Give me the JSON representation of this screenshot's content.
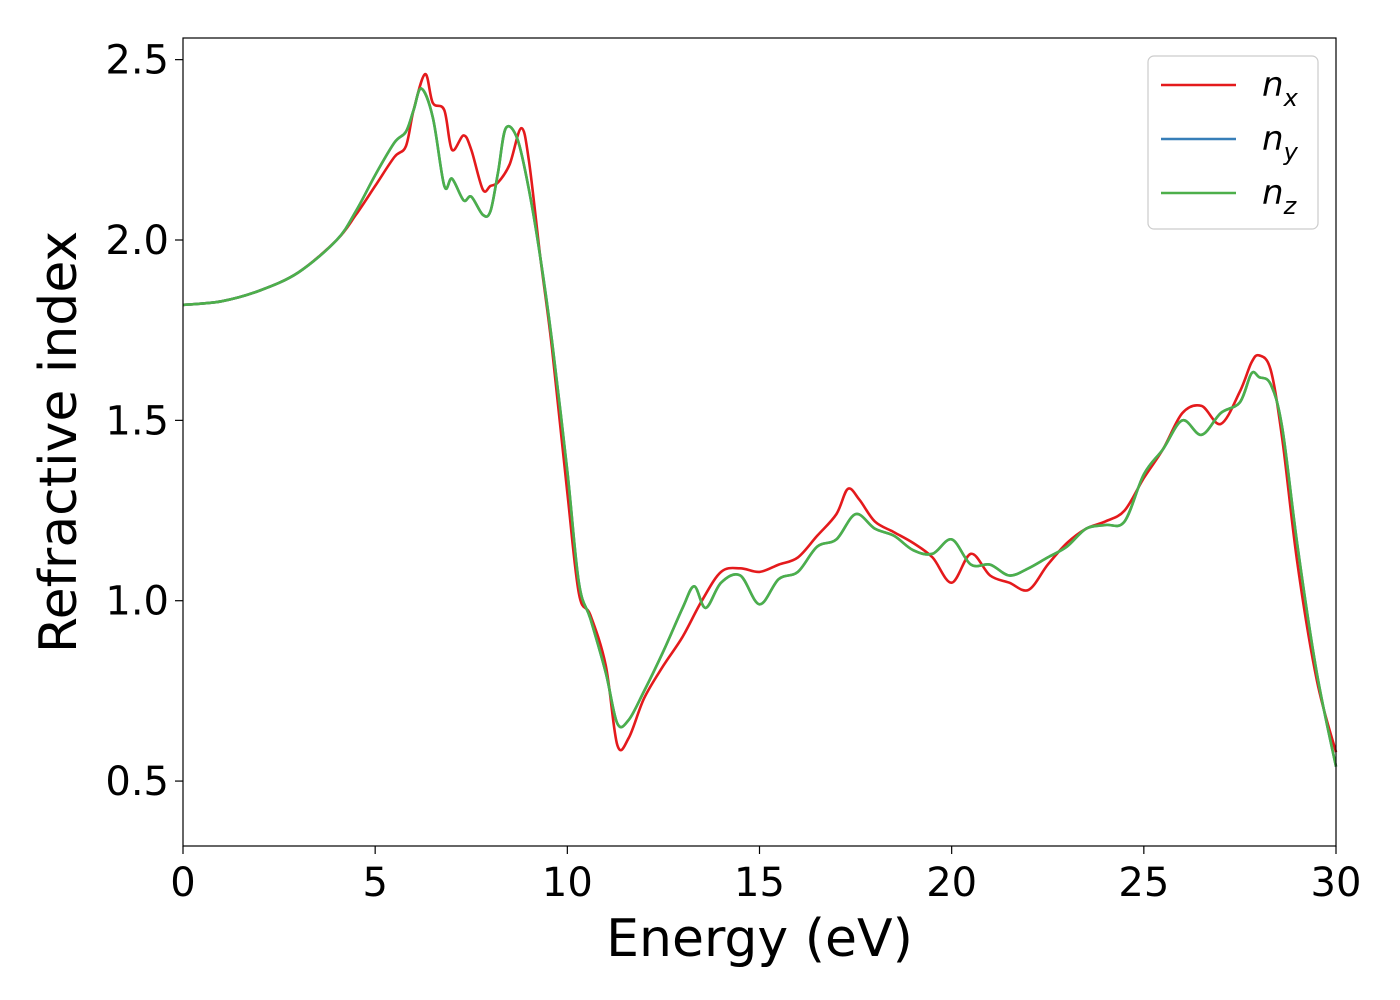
{
  "chart_data": {
    "type": "line",
    "title": "",
    "xlabel": "Energy (eV)",
    "ylabel": "Refractive index",
    "xlim": [
      0,
      30
    ],
    "ylim": [
      0.32,
      2.56
    ],
    "xticks": [
      0,
      5,
      10,
      15,
      20,
      25,
      30
    ],
    "xtick_labels": [
      "0",
      "5",
      "10",
      "15",
      "20",
      "25",
      "30"
    ],
    "yticks": [
      0.5,
      1.0,
      1.5,
      2.0,
      2.5
    ],
    "ytick_labels": [
      "0.5",
      "1.0",
      "1.5",
      "2.0",
      "2.5"
    ],
    "grid": false,
    "legend_position": "top-right",
    "series": [
      {
        "name": "n_x",
        "label_main": "n",
        "label_sub": "x",
        "color": "#e41a1c",
        "x": [
          0,
          1,
          2,
          3,
          4,
          4.5,
          5,
          5.5,
          5.8,
          6.0,
          6.3,
          6.5,
          6.8,
          7.0,
          7.3,
          7.5,
          7.8,
          8.0,
          8.2,
          8.5,
          8.8,
          9.0,
          9.3,
          9.6,
          10.0,
          10.3,
          10.6,
          11.0,
          11.3,
          11.6,
          12.0,
          12.5,
          13.0,
          13.5,
          14.0,
          14.5,
          15.0,
          15.5,
          16.0,
          16.5,
          17.0,
          17.3,
          17.6,
          18.0,
          18.5,
          19.0,
          19.5,
          20.0,
          20.5,
          21.0,
          21.5,
          22.0,
          22.5,
          23.0,
          23.5,
          24.0,
          24.5,
          25.0,
          25.5,
          26.0,
          26.5,
          27.0,
          27.5,
          27.8,
          28.0,
          28.3,
          28.6,
          29.0,
          29.5,
          30.0
        ],
        "y": [
          1.82,
          1.83,
          1.86,
          1.91,
          2.0,
          2.07,
          2.15,
          2.23,
          2.26,
          2.36,
          2.46,
          2.38,
          2.36,
          2.25,
          2.29,
          2.25,
          2.14,
          2.15,
          2.16,
          2.21,
          2.31,
          2.22,
          1.95,
          1.7,
          1.3,
          1.02,
          0.96,
          0.82,
          0.6,
          0.62,
          0.73,
          0.82,
          0.9,
          1.0,
          1.08,
          1.09,
          1.08,
          1.1,
          1.12,
          1.18,
          1.24,
          1.31,
          1.28,
          1.22,
          1.19,
          1.16,
          1.12,
          1.05,
          1.13,
          1.07,
          1.05,
          1.03,
          1.1,
          1.16,
          1.2,
          1.22,
          1.25,
          1.34,
          1.42,
          1.52,
          1.54,
          1.49,
          1.58,
          1.66,
          1.68,
          1.64,
          1.45,
          1.1,
          0.78,
          0.58
        ]
      },
      {
        "name": "n_y",
        "label_main": "n",
        "label_sub": "y",
        "color": "#377eb8",
        "x": [
          0,
          1,
          2,
          3,
          4,
          4.5,
          5,
          5.5,
          5.8,
          6.0,
          6.2,
          6.5,
          6.8,
          7.0,
          7.3,
          7.5,
          7.8,
          8.0,
          8.2,
          8.4,
          8.7,
          9.0,
          9.3,
          9.6,
          10.0,
          10.3,
          10.6,
          11.0,
          11.3,
          11.6,
          12.0,
          12.5,
          13.0,
          13.3,
          13.6,
          14.0,
          14.5,
          15.0,
          15.5,
          16.0,
          16.5,
          17.0,
          17.5,
          18.0,
          18.5,
          19.0,
          19.5,
          20.0,
          20.5,
          21.0,
          21.5,
          22.0,
          22.5,
          23.0,
          23.5,
          24.0,
          24.5,
          25.0,
          25.5,
          26.0,
          26.5,
          27.0,
          27.5,
          27.8,
          28.0,
          28.3,
          28.6,
          29.0,
          29.5,
          30.0
        ],
        "y": [
          1.82,
          1.83,
          1.86,
          1.91,
          2.0,
          2.08,
          2.18,
          2.27,
          2.3,
          2.36,
          2.42,
          2.34,
          2.15,
          2.17,
          2.11,
          2.12,
          2.07,
          2.08,
          2.19,
          2.31,
          2.28,
          2.14,
          1.95,
          1.72,
          1.36,
          1.05,
          0.95,
          0.8,
          0.66,
          0.67,
          0.75,
          0.86,
          0.98,
          1.04,
          0.98,
          1.05,
          1.07,
          0.99,
          1.06,
          1.08,
          1.15,
          1.17,
          1.24,
          1.2,
          1.18,
          1.14,
          1.13,
          1.17,
          1.1,
          1.1,
          1.07,
          1.09,
          1.12,
          1.15,
          1.2,
          1.21,
          1.22,
          1.35,
          1.42,
          1.5,
          1.46,
          1.52,
          1.55,
          1.63,
          1.62,
          1.6,
          1.48,
          1.15,
          0.8,
          0.54
        ]
      },
      {
        "name": "n_z",
        "label_main": "n",
        "label_sub": "z",
        "color": "#4daf4a",
        "x": [
          0,
          1,
          2,
          3,
          4,
          4.5,
          5,
          5.5,
          5.8,
          6.0,
          6.2,
          6.5,
          6.8,
          7.0,
          7.3,
          7.5,
          7.8,
          8.0,
          8.2,
          8.4,
          8.7,
          9.0,
          9.3,
          9.6,
          10.0,
          10.3,
          10.6,
          11.0,
          11.3,
          11.6,
          12.0,
          12.5,
          13.0,
          13.3,
          13.6,
          14.0,
          14.5,
          15.0,
          15.5,
          16.0,
          16.5,
          17.0,
          17.5,
          18.0,
          18.5,
          19.0,
          19.5,
          20.0,
          20.5,
          21.0,
          21.5,
          22.0,
          22.5,
          23.0,
          23.5,
          24.0,
          24.5,
          25.0,
          25.5,
          26.0,
          26.5,
          27.0,
          27.5,
          27.8,
          28.0,
          28.3,
          28.6,
          29.0,
          29.5,
          30.0
        ],
        "y": [
          1.82,
          1.83,
          1.86,
          1.91,
          2.0,
          2.08,
          2.18,
          2.27,
          2.3,
          2.36,
          2.42,
          2.34,
          2.15,
          2.17,
          2.11,
          2.12,
          2.07,
          2.08,
          2.19,
          2.31,
          2.28,
          2.14,
          1.95,
          1.72,
          1.36,
          1.05,
          0.95,
          0.8,
          0.66,
          0.67,
          0.75,
          0.86,
          0.98,
          1.04,
          0.98,
          1.05,
          1.07,
          0.99,
          1.06,
          1.08,
          1.15,
          1.17,
          1.24,
          1.2,
          1.18,
          1.14,
          1.13,
          1.17,
          1.1,
          1.1,
          1.07,
          1.09,
          1.12,
          1.15,
          1.2,
          1.21,
          1.22,
          1.35,
          1.42,
          1.5,
          1.46,
          1.52,
          1.55,
          1.63,
          1.62,
          1.6,
          1.48,
          1.15,
          0.8,
          0.54
        ]
      }
    ]
  }
}
